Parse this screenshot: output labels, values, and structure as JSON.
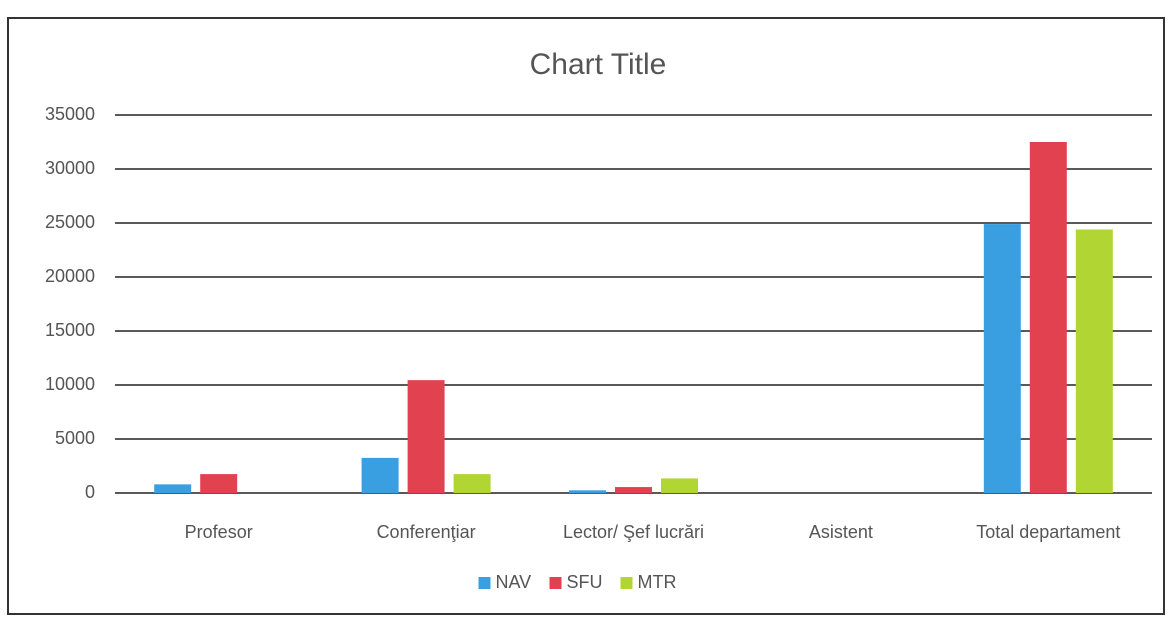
{
  "chart_data": {
    "type": "bar",
    "title": "Chart Title",
    "categories": [
      "Profesor",
      "Conferenţiar",
      "Lector/ Şef lucrări",
      "Asistent",
      "Total departament"
    ],
    "series": [
      {
        "name": "NAV",
        "color": "#3a9fe0",
        "values": [
          800,
          3250,
          250,
          0,
          24900
        ]
      },
      {
        "name": "SFU",
        "color": "#e2424f",
        "values": [
          1750,
          10450,
          550,
          0,
          32500
        ]
      },
      {
        "name": "MTR",
        "color": "#b1d634",
        "values": [
          0,
          1750,
          1350,
          0,
          24400
        ]
      }
    ],
    "ylim": [
      0,
      35000
    ],
    "yticks": [
      0,
      5000,
      10000,
      15000,
      20000,
      25000,
      30000,
      35000
    ],
    "grid": true,
    "legend": "bottom"
  }
}
